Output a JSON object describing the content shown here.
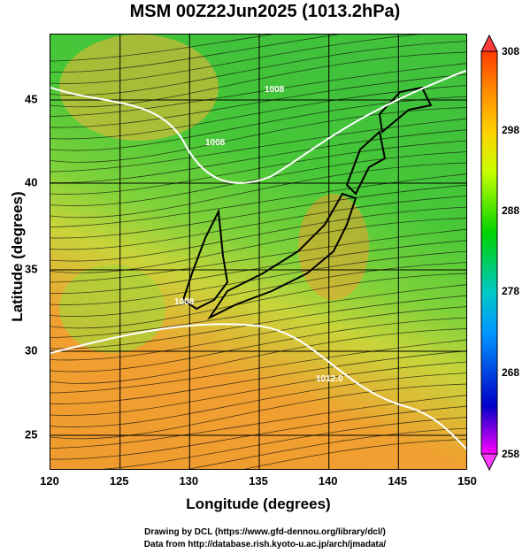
{
  "title": "MSM 00Z22Jun2025 (1013.2hPa)",
  "axes": {
    "xlabel": "Longitude (degrees)",
    "ylabel": "Latitude  (degrees)",
    "x_ticks": [
      "120",
      "125",
      "130",
      "135",
      "140",
      "145",
      "150"
    ],
    "y_ticks": [
      "25",
      "30",
      "35",
      "40",
      "45"
    ],
    "xlim": [
      120,
      150
    ],
    "ylim": [
      22.5,
      47.5
    ]
  },
  "colorbar": {
    "ticks": [
      "308",
      "298",
      "288",
      "278",
      "268",
      "258"
    ],
    "range": [
      258,
      308
    ],
    "colors": [
      "#ff00ff",
      "#0000c8",
      "#0096ff",
      "#00c8c8",
      "#00d200",
      "#c8ff00",
      "#ffd200",
      "#ff8c00",
      "#ff3c00"
    ]
  },
  "contour_labels": [
    "1008",
    "1008",
    "1012.0",
    "1008"
  ],
  "credits": {
    "line1": "Drawing by DCL (https://www.gfd-dennou.org/library/dcl/)",
    "line2": "Data from http://database.rish.kyoto-u.ac.jp/arch/jmadata/"
  }
}
